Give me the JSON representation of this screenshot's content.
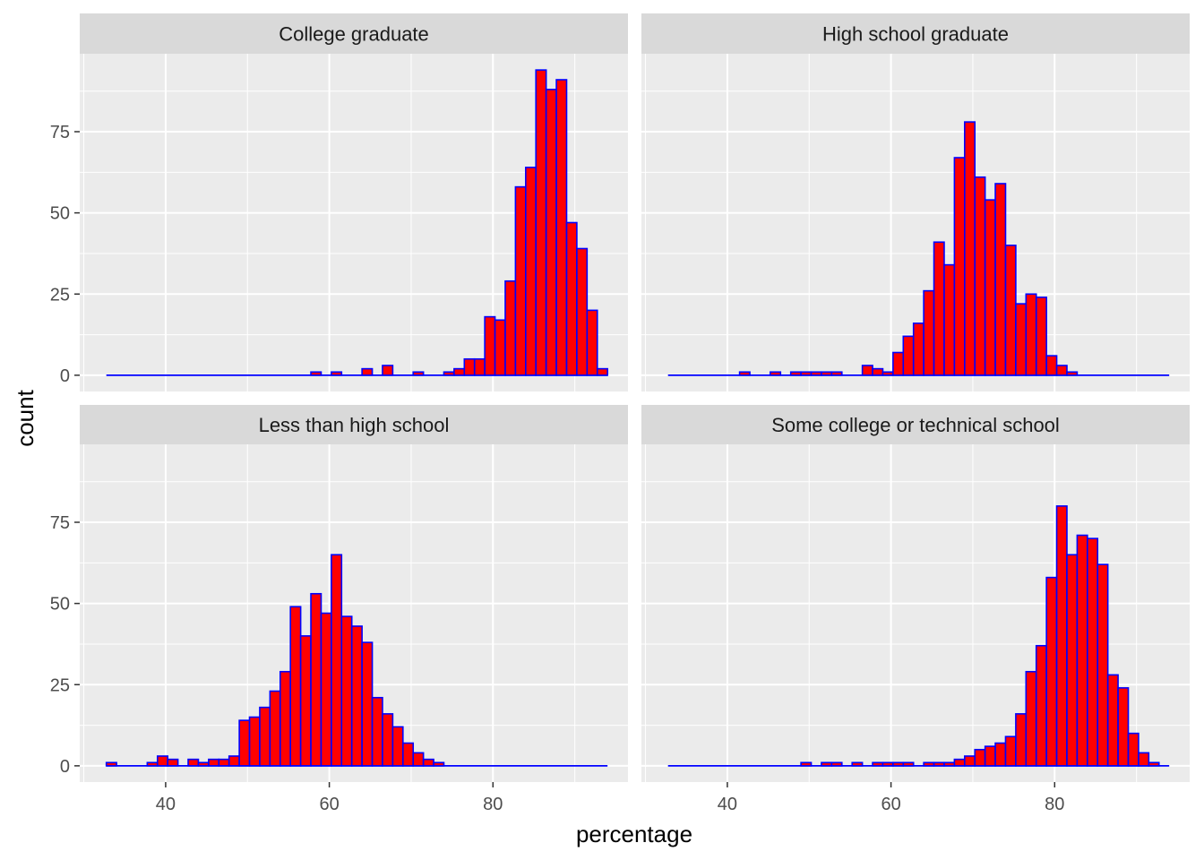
{
  "chart_data": {
    "type": "bar",
    "subtype": "faceted-histogram",
    "xlabel": "percentage",
    "ylabel": "count",
    "xlim": [
      29.5,
      96.5
    ],
    "ylim": [
      -5,
      99
    ],
    "x_ticks": [
      40,
      60,
      80
    ],
    "y_ticks": [
      0,
      25,
      50,
      75
    ],
    "bin_start": 32.75,
    "bin_width": 1.25,
    "line_end": 94.0,
    "fill_color": "#FF0000",
    "border_color": "#0000FF",
    "grid": true,
    "panel_background": "#EBEBEB",
    "strip_background": "#D9D9D9",
    "facets": [
      {
        "label": "College graduate",
        "counts": [
          0,
          0,
          0,
          0,
          0,
          0,
          0,
          0,
          0,
          0,
          0,
          0,
          0,
          0,
          0,
          0,
          0,
          0,
          0,
          0,
          1,
          0,
          1,
          0,
          0,
          2,
          0,
          3,
          0,
          0,
          1,
          0,
          0,
          1,
          2,
          5,
          5,
          18,
          17,
          29,
          58,
          64,
          94,
          88,
          91,
          47,
          39,
          20,
          2
        ]
      },
      {
        "label": "High school graduate",
        "counts": [
          0,
          0,
          0,
          0,
          0,
          0,
          0,
          1,
          0,
          0,
          1,
          0,
          1,
          1,
          1,
          1,
          1,
          0,
          0,
          3,
          2,
          1,
          7,
          12,
          16,
          26,
          41,
          34,
          67,
          78,
          61,
          54,
          59,
          40,
          22,
          25,
          24,
          6,
          3,
          1,
          0,
          0,
          0,
          0,
          0,
          0,
          0,
          0,
          0
        ]
      },
      {
        "label": "Less than high school",
        "counts": [
          1,
          0,
          0,
          0,
          1,
          3,
          2,
          0,
          2,
          1,
          2,
          2,
          3,
          14,
          15,
          18,
          23,
          29,
          49,
          40,
          53,
          47,
          65,
          46,
          43,
          38,
          21,
          16,
          12,
          7,
          4,
          2,
          1,
          0,
          0,
          0,
          0,
          0,
          0,
          0,
          0,
          0,
          0,
          0,
          0,
          0,
          0,
          0,
          0
        ]
      },
      {
        "label": "Some college or technical school",
        "counts": [
          0,
          0,
          0,
          0,
          0,
          0,
          0,
          0,
          0,
          0,
          0,
          0,
          0,
          1,
          0,
          1,
          1,
          0,
          1,
          0,
          1,
          1,
          1,
          1,
          0,
          1,
          1,
          1,
          2,
          3,
          5,
          6,
          7,
          9,
          16,
          29,
          37,
          58,
          80,
          65,
          71,
          70,
          62,
          28,
          24,
          10,
          4,
          1,
          0
        ]
      }
    ]
  }
}
